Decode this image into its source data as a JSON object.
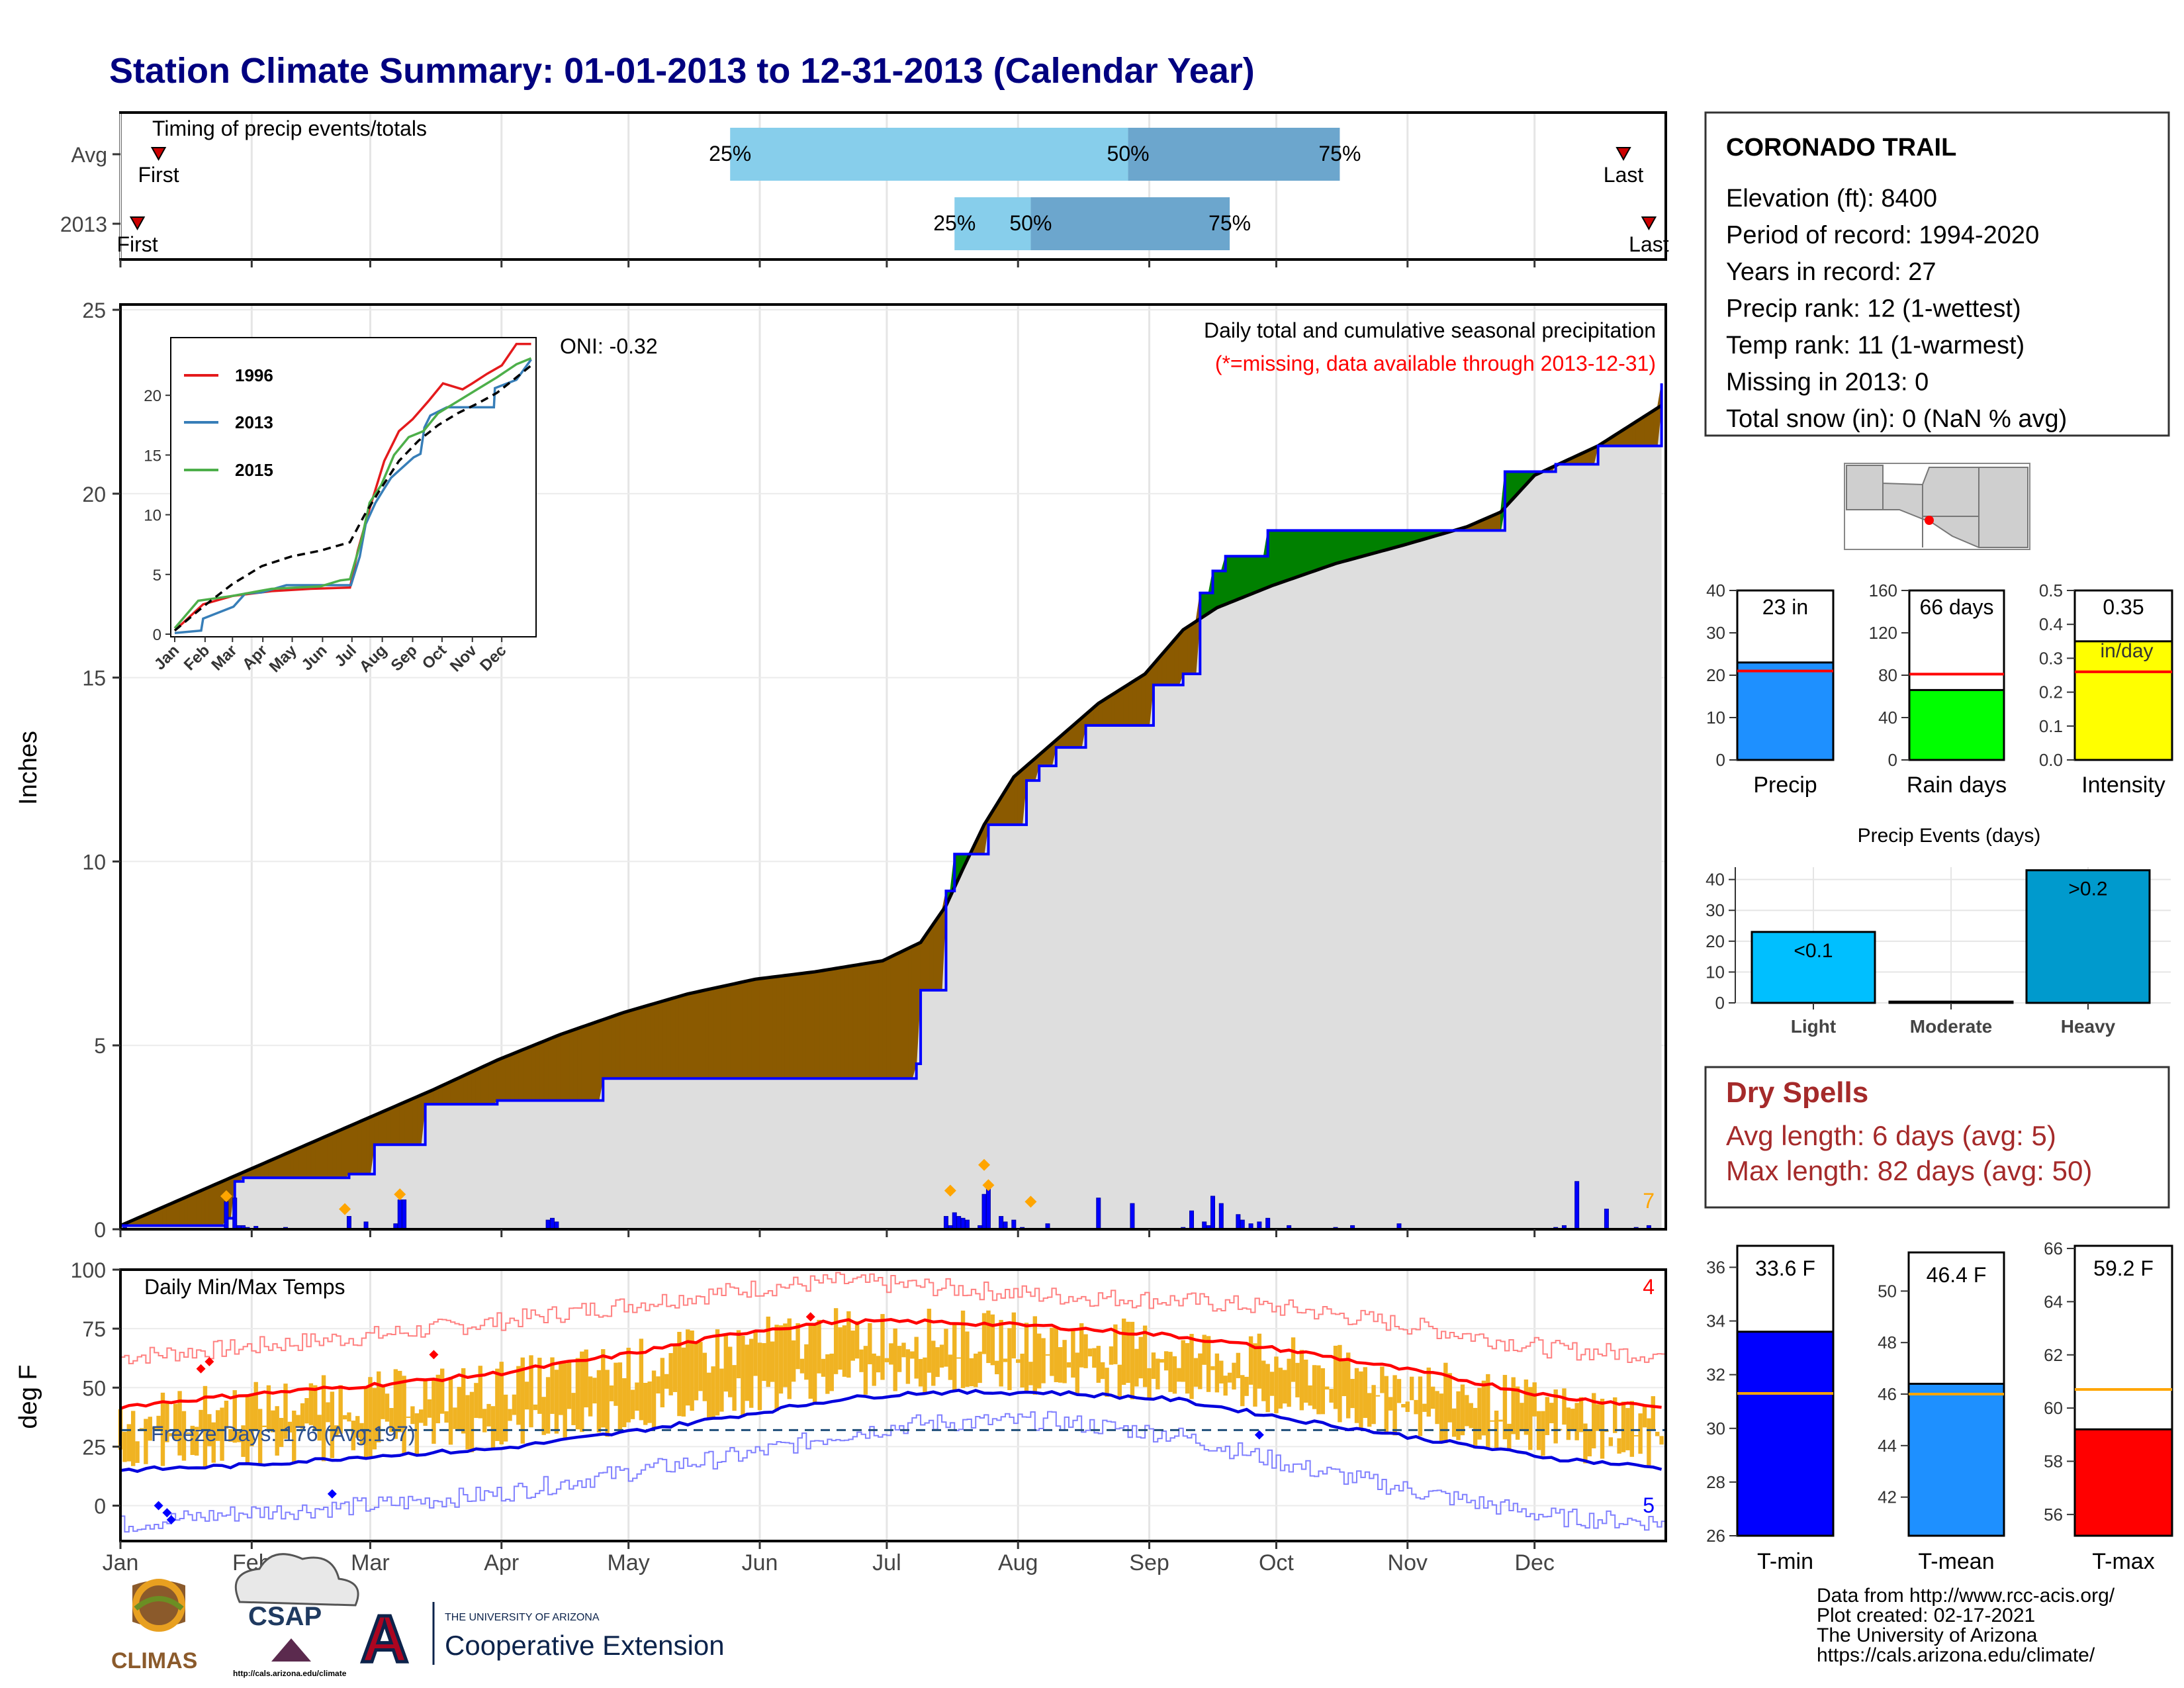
{
  "title": "Station Climate Summary: 01-01-2013 to 12-31-2013 (Calendar Year)",
  "months": [
    "Jan",
    "Feb",
    "Mar",
    "Apr",
    "May",
    "Jun",
    "Jul",
    "Aug",
    "Sep",
    "Oct",
    "Nov",
    "Dec"
  ],
  "colors": {
    "title": "#000080",
    "brown": "#8B5A00",
    "green": "#008000",
    "blue": "#0000FF",
    "gray": "#DEDEDE",
    "red": "#FF0000",
    "orange": "#FFA500",
    "light_blue": "#87CEEB",
    "mid_blue": "#6CA6CD",
    "temp_bar": "#F0B323",
    "dry_spell": "#A52A2A"
  },
  "timing": {
    "title": "Timing of precip events/totals",
    "rows": [
      {
        "label": "Avg",
        "first_doy": 10,
        "last_doy": 356,
        "p25_doy": 145,
        "p50_doy": 239,
        "p75_doy": 289,
        "first_label": "First",
        "last_label": "Last",
        "p25_label": "25%",
        "p50_label": "50%",
        "p75_label": "75%"
      },
      {
        "label": "2013",
        "first_doy": 5,
        "last_doy": 362,
        "p25_doy": 198,
        "p50_doy": 216,
        "p75_doy": 263,
        "first_label": "First",
        "last_label": "Last",
        "p25_label": "25%",
        "p50_label": "50%",
        "p75_label": "75%"
      }
    ]
  },
  "precip": {
    "ylabel": "Inches",
    "annotation_title": "Daily total and cumulative seasonal precipitation",
    "annotation_missing": "(*=missing, data available through 2013-12-31)",
    "oni": "ONI: -0.32",
    "corner_count": "7",
    "ylim": [
      0,
      25
    ],
    "yticks": [
      0,
      5,
      10,
      15,
      20,
      25
    ]
  },
  "chart_data": [
    {
      "type": "area",
      "name": "cumulative-precip",
      "x_units": "day of year",
      "series": [
        {
          "name": "average",
          "x": [
            1,
            15,
            31,
            45,
            59,
            75,
            90,
            105,
            120,
            135,
            151,
            165,
            181,
            190,
            196,
            200,
            205,
            212,
            222,
            232,
            243,
            252,
            260,
            273,
            288,
            304,
            319,
            327,
            335,
            350,
            365
          ],
          "y": [
            0.1,
            0.8,
            1.6,
            2.3,
            3.0,
            3.8,
            4.6,
            5.3,
            5.9,
            6.4,
            6.8,
            7.0,
            7.3,
            7.8,
            8.8,
            9.8,
            11.0,
            12.3,
            13.3,
            14.3,
            15.1,
            16.3,
            16.9,
            17.5,
            18.1,
            18.6,
            19.1,
            19.5,
            20.5,
            21.3,
            22.4
          ]
        },
        {
          "name": "2013",
          "x": [
            1,
            15,
            26,
            28,
            30,
            55,
            61,
            72,
            73,
            90,
            115,
            181,
            189,
            190,
            193,
            196,
            198,
            206,
            215,
            218,
            222,
            229,
            236,
            245,
            252,
            256,
            259,
            262,
            272,
            279,
            300,
            318,
            327,
            328,
            340,
            350,
            365
          ],
          "y": [
            0.1,
            0.1,
            0.3,
            1.3,
            1.4,
            1.5,
            2.3,
            2.3,
            3.4,
            3.5,
            4.1,
            4.1,
            4.5,
            6.5,
            6.5,
            9.2,
            10.2,
            11.0,
            12.2,
            12.6,
            13.1,
            13.7,
            13.7,
            14.8,
            15.1,
            17.3,
            17.9,
            18.3,
            19.0,
            19.0,
            19.0,
            19.0,
            19.0,
            20.6,
            20.8,
            21.3,
            23.0
          ]
        }
      ],
      "ylim": [
        0,
        25
      ]
    },
    {
      "type": "bar",
      "name": "daily-precip",
      "x_units": "day of year",
      "x": [
        2,
        26,
        28,
        29,
        30,
        31,
        33,
        40,
        55,
        59,
        66,
        67,
        68,
        102,
        103,
        104,
        196,
        197,
        198,
        199,
        200,
        201,
        204,
        205,
        206,
        209,
        210,
        212,
        214,
        220,
        232,
        240,
        252,
        254,
        257,
        258,
        259,
        261,
        265,
        266,
        268,
        270,
        272,
        277,
        288,
        292,
        303,
        340,
        342,
        345,
        352,
        359,
        362
      ],
      "y": [
        0.05,
        0.75,
        0.85,
        0.1,
        0.1,
        0.05,
        0.08,
        0.05,
        0.35,
        0.2,
        0.15,
        0.8,
        0.8,
        0.25,
        0.3,
        0.2,
        0.35,
        0.1,
        0.45,
        0.35,
        0.3,
        0.25,
        0.1,
        0.95,
        1.1,
        0.35,
        0.2,
        0.25,
        0.05,
        0.15,
        0.85,
        0.7,
        0.05,
        0.5,
        0.2,
        0.1,
        0.9,
        0.7,
        0.4,
        0.25,
        0.15,
        0.2,
        0.3,
        0.1,
        0.05,
        0.1,
        0.15,
        0.05,
        0.1,
        1.3,
        0.55,
        0.05,
        0.1
      ],
      "ylim": [
        0,
        25
      ]
    },
    {
      "type": "scatter",
      "name": "precip-event-markers",
      "x": [
        26,
        54,
        67,
        197,
        205,
        206,
        216
      ],
      "y": [
        0.9,
        0.55,
        0.95,
        1.05,
        1.75,
        1.2,
        0.75
      ]
    },
    {
      "type": "line",
      "name": "inset-cumulative",
      "x_ticks": [
        "Jan",
        "Feb",
        "Mar",
        "Apr",
        "May",
        "Jun",
        "Jul",
        "Aug",
        "Sep",
        "Oct",
        "Nov",
        "Dec"
      ],
      "ylim": [
        0,
        24
      ],
      "yticks": [
        0,
        5,
        10,
        15,
        20
      ],
      "series": [
        {
          "name": "1996",
          "x": [
            1,
            30,
            60,
            100,
            140,
            180,
            188,
            200,
            215,
            230,
            244,
            260,
            275,
            295,
            305,
            320,
            335,
            350,
            365
          ],
          "y": [
            0.3,
            2.5,
            3.2,
            3.6,
            3.8,
            3.9,
            7.0,
            10.5,
            14.5,
            17.0,
            18.0,
            19.5,
            21.0,
            20.5,
            21.0,
            21.8,
            22.5,
            24.3,
            24.3
          ]
        },
        {
          "name": "2013",
          "x": [
            1,
            28,
            30,
            61,
            73,
            90,
            115,
            181,
            190,
            196,
            206,
            215,
            222,
            245,
            252,
            256,
            262,
            279,
            327,
            328,
            350,
            365
          ],
          "y": [
            0.1,
            0.3,
            1.3,
            2.3,
            3.4,
            3.5,
            4.1,
            4.1,
            6.5,
            9.2,
            11.0,
            12.2,
            13.1,
            14.8,
            15.1,
            17.3,
            18.3,
            19.0,
            19.0,
            20.6,
            21.3,
            23.0
          ]
        },
        {
          "name": "2015",
          "x": [
            1,
            25,
            60,
            100,
            150,
            170,
            180,
            192,
            200,
            212,
            225,
            240,
            255,
            270,
            290,
            310,
            330,
            350,
            365
          ],
          "y": [
            0.5,
            2.8,
            3.2,
            3.8,
            4.0,
            4.5,
            4.6,
            8.0,
            11.0,
            12.5,
            15.0,
            16.5,
            17.0,
            18.5,
            19.5,
            20.5,
            21.5,
            22.6,
            23.1
          ]
        },
        {
          "name": "",
          "x": [
            1,
            30,
            60,
            90,
            120,
            150,
            180,
            195,
            210,
            230,
            250,
            270,
            290,
            310,
            330,
            350,
            365
          ],
          "y": [
            0.3,
            2.3,
            4.2,
            5.7,
            6.5,
            7.0,
            7.7,
            10.0,
            12.0,
            14.5,
            16.2,
            17.5,
            18.5,
            19.3,
            20.2,
            21.5,
            22.5
          ]
        }
      ]
    },
    {
      "type": "line",
      "name": "daily-temps",
      "title": "Daily Min/Max Temps",
      "ylabel": "deg F",
      "ylim": [
        -15,
        100
      ],
      "yticks": [
        0,
        25,
        50,
        75,
        100
      ],
      "freeze_line": 32,
      "freeze_label": "Freeze Days: 176 (Avg:197)",
      "corner_high": "4",
      "corner_low": "5",
      "series": [
        {
          "name": "avg-max",
          "x": [
            1,
            30,
            60,
            90,
            120,
            150,
            170,
            190,
            220,
            250,
            280,
            310,
            340,
            365
          ],
          "y": [
            42,
            47,
            51,
            56,
            64,
            74,
            78,
            78,
            76,
            72,
            65,
            56,
            46,
            42
          ]
        },
        {
          "name": "avg-min",
          "x": [
            1,
            30,
            60,
            90,
            120,
            150,
            170,
            190,
            220,
            250,
            280,
            310,
            340,
            365
          ],
          "y": [
            15,
            17,
            21,
            24,
            31,
            39,
            45,
            48,
            48,
            45,
            36,
            28,
            20,
            16
          ]
        },
        {
          "name": "record-max",
          "x": [
            1,
            30,
            60,
            90,
            120,
            150,
            170,
            190,
            220,
            250,
            280,
            310,
            340,
            365
          ],
          "y": [
            63,
            67,
            72,
            78,
            85,
            92,
            95,
            93,
            89,
            87,
            83,
            75,
            66,
            64
          ]
        },
        {
          "name": "record-min",
          "x": [
            1,
            30,
            60,
            90,
            120,
            150,
            170,
            190,
            220,
            250,
            280,
            310,
            340,
            365
          ],
          "y": [
            -8,
            -3,
            0,
            5,
            14,
            22,
            30,
            35,
            36,
            30,
            16,
            5,
            -5,
            -7
          ]
        }
      ],
      "markers_high": {
        "x": [
          20,
          22,
          75,
          164
        ],
        "y": [
          58,
          61,
          64,
          80
        ]
      },
      "markers_low": {
        "x": [
          10,
          12,
          13,
          51,
          270
        ],
        "y": [
          0,
          -3,
          -6,
          5,
          30
        ]
      }
    }
  ],
  "info": {
    "station": "CORONADO TRAIL",
    "lines": [
      "Elevation (ft): 8400",
      "Period of record: 1994-2020",
      "Years in record: 27",
      "Precip rank: 12 (1-wettest)",
      "Temp rank: 11 (1-warmest)",
      "Missing in 2013: 0",
      "Total snow (in): 0 (NaN % avg)"
    ]
  },
  "mini_bars": [
    {
      "name": "Precip",
      "value": 23,
      "avg": 21,
      "ymax": 40,
      "yticks": [
        0,
        10,
        20,
        30,
        40
      ],
      "label": "23 in",
      "label2": "",
      "color": "#1E90FF"
    },
    {
      "name": "Rain days",
      "value": 66,
      "avg": 81,
      "ymax": 160,
      "yticks": [
        0,
        40,
        80,
        120,
        160
      ],
      "label": "66 days",
      "label2": "",
      "color": "#00FF00"
    },
    {
      "name": "Intensity",
      "value": 0.35,
      "avg": 0.26,
      "ymax": 0.5,
      "yticks": [
        "0.0",
        "0.1",
        "0.2",
        "0.3",
        "0.4",
        "0.5"
      ],
      "label": "0.35",
      "label2": "in/day",
      "color": "#FFFF00"
    }
  ],
  "events": {
    "title": "Precip Events (days)",
    "yticks": [
      0,
      10,
      20,
      30,
      40
    ],
    "ymax": 44,
    "bars": [
      {
        "name": "Light",
        "value": 23,
        "label": "<0.1",
        "color": "#00BFFF"
      },
      {
        "name": "Moderate",
        "value": 0.4,
        "label": "",
        "color": "#1E90FF"
      },
      {
        "name": "Heavy",
        "value": 43,
        "label": ">0.2",
        "color": "#009ACD"
      }
    ]
  },
  "dry_spells": {
    "title": "Dry Spells",
    "avg": "Avg length: 6 days (avg: 5)",
    "max": "Max length: 82 days (avg: 50)"
  },
  "temp_bars": [
    {
      "name": "T-min",
      "value": 33.6,
      "avg": 31.3,
      "ylim": [
        26,
        36.8
      ],
      "yticks": [
        26,
        28,
        30,
        32,
        34,
        36
      ],
      "label": "33.6 F",
      "color": "#0000FF"
    },
    {
      "name": "T-mean",
      "value": 46.4,
      "avg": 46.0,
      "ylim": [
        40.5,
        51.5
      ],
      "yticks": [
        42,
        44,
        46,
        48,
        50
      ],
      "label": "46.4 F",
      "color": "#1E90FF"
    },
    {
      "name": "T-max",
      "value": 59.2,
      "avg": 60.7,
      "ylim": [
        55.2,
        66.1
      ],
      "yticks": [
        56,
        58,
        60,
        62,
        64,
        66
      ],
      "label": "59.2 F",
      "color": "#FF0000"
    }
  ],
  "footer": {
    "lines": [
      "Data from http://www.rcc-acis.org/",
      "Plot created: 02-17-2021",
      "The University of Arizona",
      "https://cals.arizona.edu/climate/"
    ],
    "logos": {
      "climas": "CLIMAS",
      "csap": "CSAP",
      "csap_url": "http://cals.arizona.edu/climate",
      "ua_small": "THE UNIVERSITY OF ARIZONA",
      "ua_coop": "Cooperative Extension",
      "ua_mark": "A"
    }
  }
}
